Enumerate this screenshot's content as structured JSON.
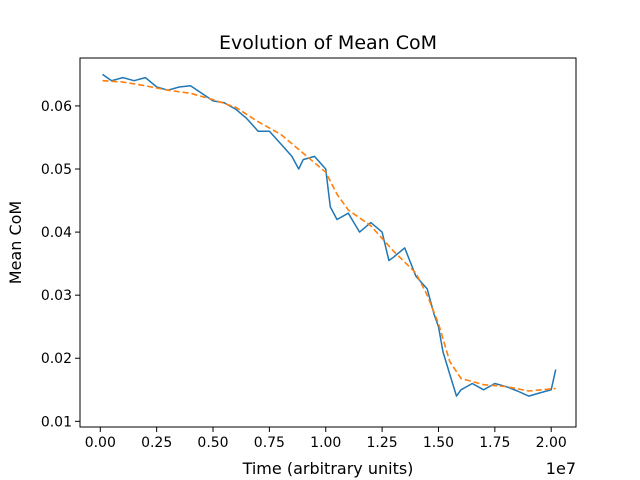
{
  "chart_data": {
    "type": "line",
    "title": "Evolution of Mean CoM",
    "xlabel": "Time (arbitrary units)",
    "ylabel": "Mean CoM",
    "x_offset_label": "1e7",
    "xlim": [
      -0.09,
      2.11
    ],
    "ylim": [
      0.0091,
      0.0676
    ],
    "xticks": [
      0.0,
      0.25,
      0.5,
      0.75,
      1.0,
      1.25,
      1.5,
      1.75,
      2.0
    ],
    "xtick_labels": [
      "0.00",
      "0.25",
      "0.50",
      "0.75",
      "1.00",
      "1.25",
      "1.50",
      "1.75",
      "2.00"
    ],
    "yticks": [
      0.01,
      0.02,
      0.03,
      0.04,
      0.05,
      0.06
    ],
    "ytick_labels": [
      "0.01",
      "0.02",
      "0.03",
      "0.04",
      "0.05",
      "0.06"
    ],
    "grid": false,
    "legend": "none",
    "colors": {
      "raw": "#1f77b4",
      "smoothed": "#ff7f0e"
    },
    "series": [
      {
        "style": "solid",
        "x": [
          0.01,
          0.05,
          0.1,
          0.15,
          0.2,
          0.25,
          0.3,
          0.35,
          0.4,
          0.45,
          0.5,
          0.55,
          0.6,
          0.65,
          0.7,
          0.75,
          0.8,
          0.85,
          0.88,
          0.9,
          0.95,
          1.0,
          1.02,
          1.05,
          1.1,
          1.15,
          1.2,
          1.25,
          1.28,
          1.3,
          1.35,
          1.4,
          1.45,
          1.48,
          1.5,
          1.52,
          1.55,
          1.58,
          1.6,
          1.65,
          1.7,
          1.75,
          1.8,
          1.85,
          1.9,
          1.95,
          2.0,
          2.02
        ],
        "y": [
          0.065,
          0.064,
          0.0645,
          0.064,
          0.0645,
          0.063,
          0.0625,
          0.063,
          0.0632,
          0.062,
          0.0608,
          0.0605,
          0.0595,
          0.058,
          0.056,
          0.056,
          0.054,
          0.052,
          0.05,
          0.0515,
          0.052,
          0.05,
          0.044,
          0.042,
          0.043,
          0.04,
          0.0415,
          0.04,
          0.0355,
          0.036,
          0.0375,
          0.033,
          0.031,
          0.027,
          0.025,
          0.021,
          0.0175,
          0.014,
          0.015,
          0.016,
          0.015,
          0.016,
          0.0155,
          0.0148,
          0.014,
          0.0145,
          0.015,
          0.0182
        ]
      },
      {
        "style": "dashed",
        "x": [
          0.01,
          0.1,
          0.2,
          0.3,
          0.4,
          0.5,
          0.6,
          0.7,
          0.8,
          0.9,
          1.0,
          1.05,
          1.1,
          1.2,
          1.3,
          1.4,
          1.45,
          1.5,
          1.55,
          1.6,
          1.7,
          1.8,
          1.9,
          2.02
        ],
        "y": [
          0.064,
          0.0638,
          0.0632,
          0.0625,
          0.062,
          0.061,
          0.0598,
          0.0575,
          0.0555,
          0.0525,
          0.0495,
          0.046,
          0.0435,
          0.041,
          0.037,
          0.0335,
          0.03,
          0.0255,
          0.0195,
          0.0168,
          0.0158,
          0.0155,
          0.0148,
          0.0152
        ]
      }
    ]
  }
}
